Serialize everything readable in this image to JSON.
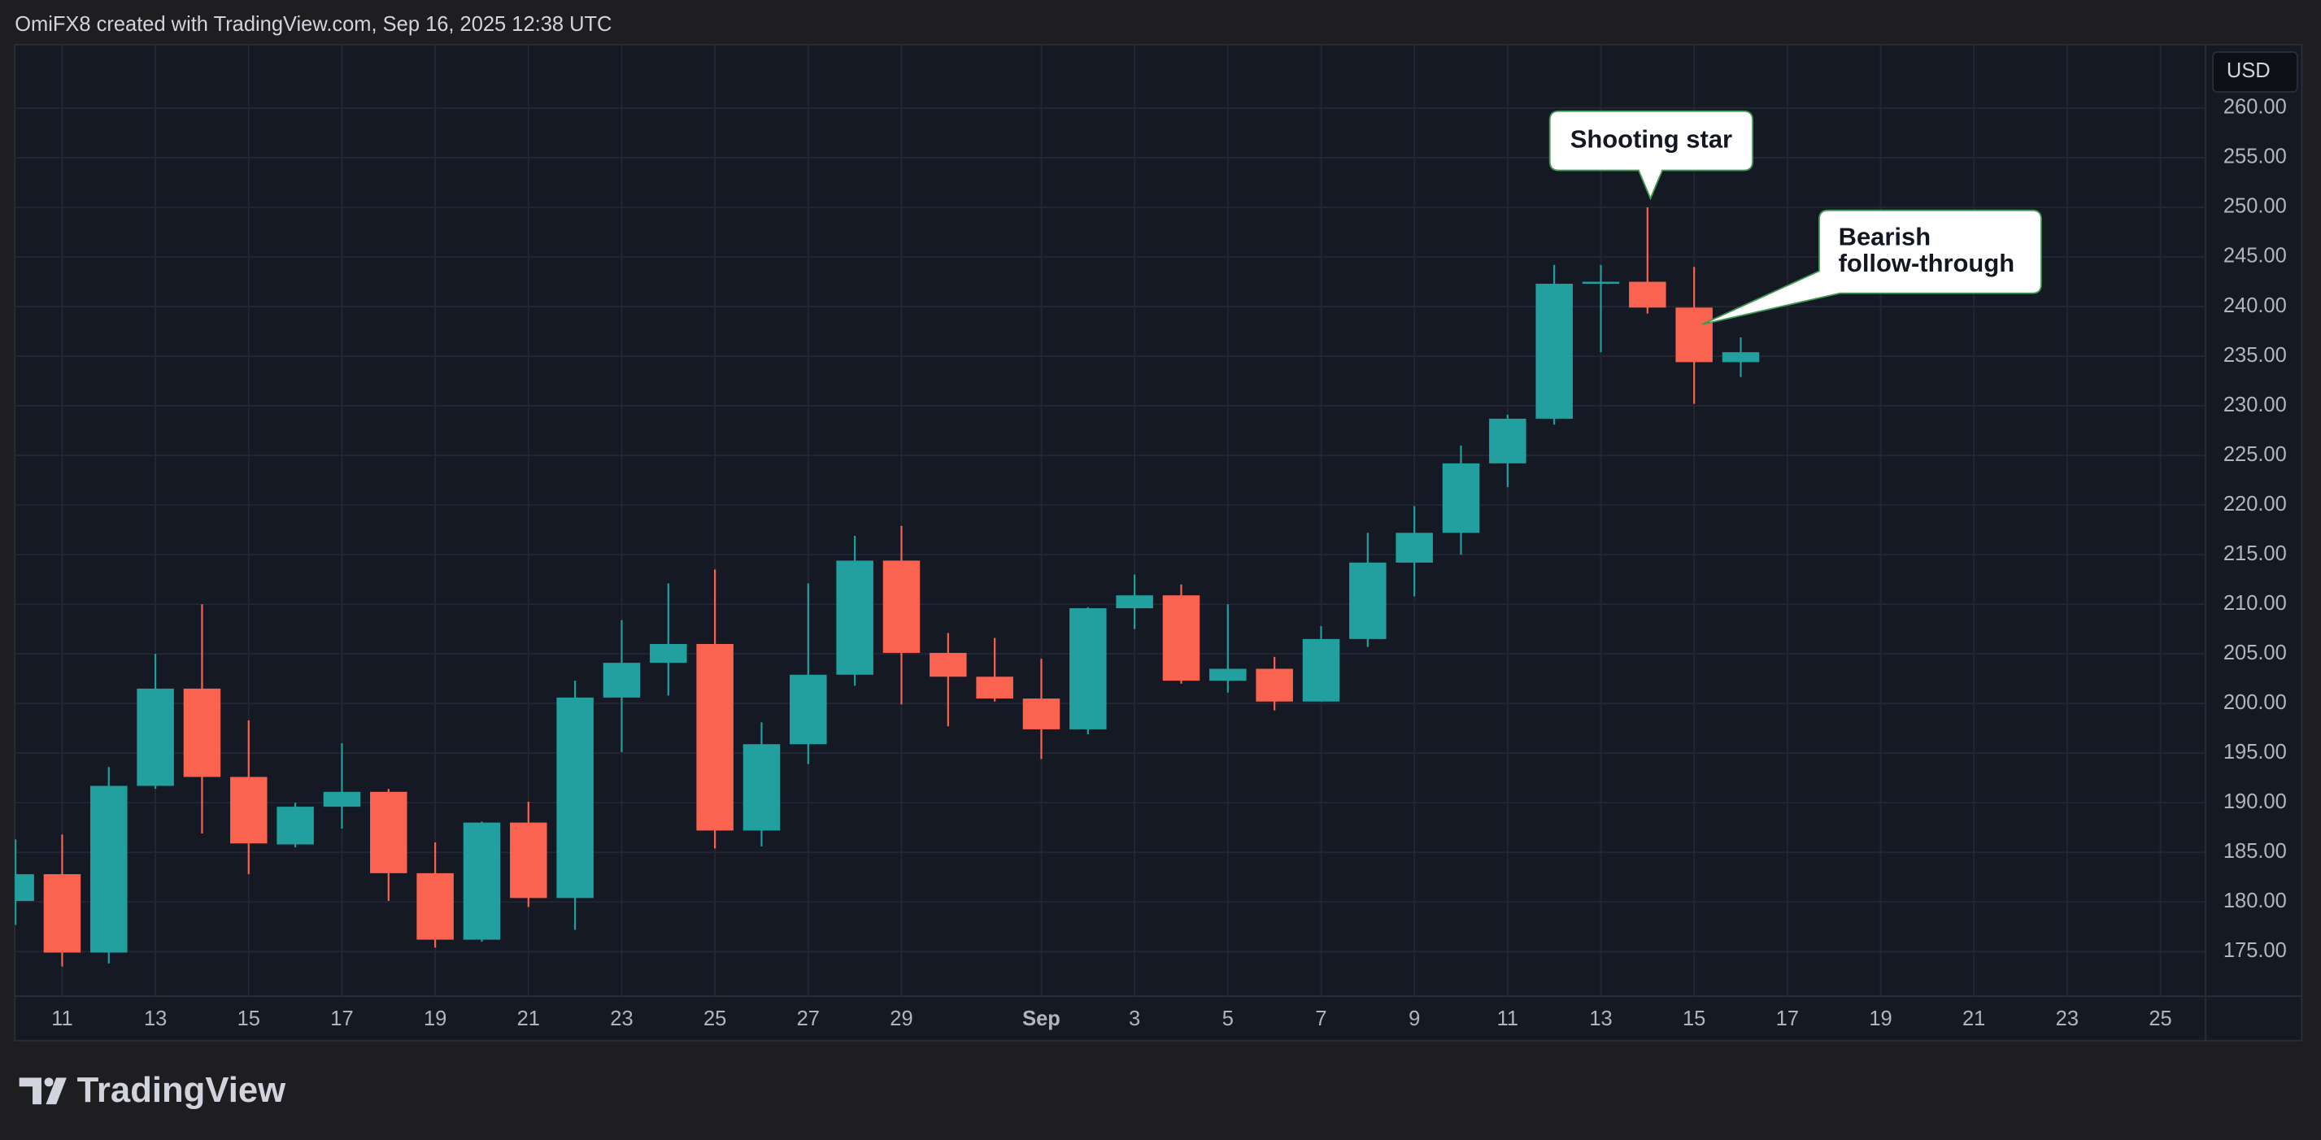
{
  "header": "OmiFX8 created with TradingView.com, Sep 16, 2025 12:38 UTC",
  "brand": "TradingView",
  "chart_data": {
    "type": "candlestick",
    "currency": "USD",
    "up_color": "#22a09f",
    "down_color": "#f9634f",
    "grid": true,
    "categories": [
      null,
      "11",
      null,
      "13",
      null,
      "15",
      null,
      "17",
      null,
      "19",
      null,
      "21",
      null,
      "23",
      null,
      "25",
      null,
      "27",
      null,
      "29",
      null,
      null,
      "Sep",
      null,
      "3",
      null,
      "5",
      null,
      "7",
      null,
      "9",
      null,
      "11",
      null,
      "13",
      null,
      "15",
      null,
      "17",
      null,
      "19",
      null,
      "21",
      null,
      "23",
      null,
      "25"
    ],
    "open": [
      180.1,
      182.8,
      174.9,
      191.7,
      201.5,
      192.6,
      185.8,
      189.6,
      191.1,
      182.9,
      176.2,
      188.0,
      180.4,
      200.6,
      204.1,
      206.0,
      187.2,
      195.9,
      202.9,
      214.4,
      205.1,
      202.7,
      200.5,
      197.4,
      209.6,
      210.9,
      202.3,
      203.5,
      200.2,
      206.5,
      214.2,
      217.2,
      224.2,
      228.7,
      242.3,
      242.5,
      239.9,
      234.4,
      null,
      null,
      null,
      null,
      null,
      null,
      null,
      null,
      null
    ],
    "high": [
      186.3,
      186.8,
      193.6,
      205.0,
      210.0,
      198.3,
      190.0,
      196.0,
      191.4,
      186.0,
      188.1,
      190.1,
      202.3,
      208.4,
      212.1,
      213.5,
      198.1,
      212.1,
      216.9,
      217.9,
      207.1,
      206.6,
      204.5,
      209.7,
      213.0,
      212.0,
      210.0,
      204.7,
      207.8,
      217.2,
      219.9,
      226.0,
      229.1,
      244.2,
      244.2,
      250.0,
      244.0,
      236.9,
      null,
      null,
      null,
      null,
      null,
      null,
      null,
      null,
      null
    ],
    "low": [
      177.7,
      173.5,
      173.8,
      191.4,
      186.9,
      182.8,
      185.5,
      187.4,
      180.1,
      175.4,
      176.0,
      179.5,
      177.2,
      195.1,
      200.8,
      185.4,
      185.6,
      193.9,
      201.8,
      199.9,
      197.7,
      200.2,
      194.4,
      196.9,
      207.5,
      202.0,
      201.1,
      199.3,
      200.2,
      205.7,
      210.8,
      215.0,
      221.8,
      228.1,
      235.4,
      239.3,
      230.2,
      232.9,
      null,
      null,
      null,
      null,
      null,
      null,
      null,
      null,
      null
    ],
    "close": [
      182.8,
      174.9,
      191.7,
      201.5,
      192.6,
      185.9,
      189.6,
      191.1,
      182.9,
      176.2,
      188.0,
      180.4,
      200.6,
      204.1,
      206.0,
      187.2,
      195.9,
      202.9,
      214.4,
      205.1,
      202.7,
      200.5,
      197.4,
      209.6,
      210.9,
      202.3,
      203.5,
      200.2,
      206.5,
      214.2,
      217.2,
      224.2,
      228.7,
      242.3,
      242.5,
      239.9,
      234.4,
      235.4,
      null,
      null,
      null,
      null,
      null,
      null,
      null,
      null,
      null
    ],
    "ylim": [
      170.5,
      266.4
    ],
    "yticks": [
      {
        "value": 175,
        "label": "175.00"
      },
      {
        "value": 180,
        "label": "180.00"
      },
      {
        "value": 185,
        "label": "185.00"
      },
      {
        "value": 190,
        "label": "190.00"
      },
      {
        "value": 195,
        "label": "195.00"
      },
      {
        "value": 200,
        "label": "200.00"
      },
      {
        "value": 205,
        "label": "205.00"
      },
      {
        "value": 210,
        "label": "210.00"
      },
      {
        "value": 215,
        "label": "215.00"
      },
      {
        "value": 220,
        "label": "220.00"
      },
      {
        "value": 225,
        "label": "225.00"
      },
      {
        "value": 230,
        "label": "230.00"
      },
      {
        "value": 235,
        "label": "235.00"
      },
      {
        "value": 240,
        "label": "240.00"
      },
      {
        "value": 245,
        "label": "245.00"
      },
      {
        "value": 250,
        "label": "250.00"
      },
      {
        "value": 255,
        "label": "255.00"
      },
      {
        "value": 260,
        "label": "260.00"
      }
    ],
    "annotations": [
      {
        "lines": [
          "Shooting star"
        ]
      },
      {
        "lines": [
          "Bearish",
          "follow-through"
        ]
      }
    ]
  }
}
